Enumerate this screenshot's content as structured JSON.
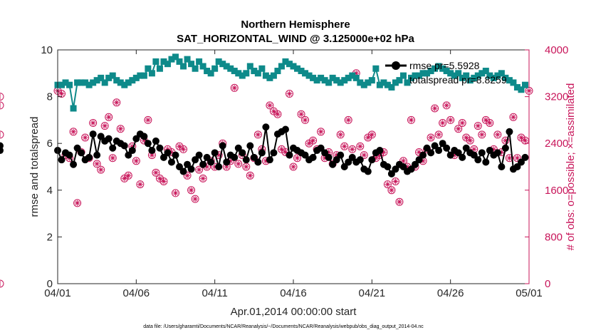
{
  "chart_data": {
    "type": "line",
    "title": "Northern Hemisphere",
    "subtitle": "SAT_HORIZONTAL_WIND @ 3.125000e+02 hPa",
    "xlabel": "Apr.01,2014 00:00:00 start",
    "ylabel": "rmse and totalspread",
    "y2label": "# of obs: o=possible; ×=assimilated",
    "xlim": [
      0,
      30
    ],
    "ylim": [
      0,
      10
    ],
    "y2lim": [
      0,
      4000
    ],
    "x_tick_values": [
      0,
      5,
      10,
      15,
      20,
      25,
      30
    ],
    "x_tick_labels": [
      "04/01",
      "04/06",
      "04/11",
      "04/16",
      "04/21",
      "04/26",
      "05/01"
    ],
    "y_ticks": [
      0,
      2,
      4,
      6,
      8,
      10
    ],
    "y2_ticks": [
      0,
      800,
      1600,
      2400,
      3200,
      4000
    ],
    "grid": false,
    "legend_position": "top-right",
    "colors": {
      "rmse": "#000000",
      "totalspread": "#0e8a8a",
      "obs": "#c8155a"
    },
    "legend": [
      {
        "label": "rmse pr=5.5928",
        "color": "#000000",
        "marker": "circle"
      },
      {
        "label": "totalspread pr=8.8259",
        "color": "#0e8a8a",
        "marker": "square"
      }
    ],
    "rmse_x": [
      0,
      0.25,
      0.5,
      0.75,
      1,
      1.25,
      1.5,
      1.75,
      2,
      2.25,
      2.5,
      2.75,
      3,
      3.25,
      3.5,
      3.75,
      4,
      4.25,
      4.5,
      4.75,
      5,
      5.25,
      5.5,
      5.75,
      6,
      6.25,
      6.5,
      6.75,
      7,
      7.25,
      7.5,
      7.75,
      8,
      8.25,
      8.5,
      8.75,
      9,
      9.25,
      9.5,
      9.75,
      10,
      10.25,
      10.5,
      10.75,
      11,
      11.25,
      11.5,
      11.75,
      12,
      12.25,
      12.5,
      12.75,
      13,
      13.25,
      13.5,
      13.75,
      14,
      14.25,
      14.5,
      14.75,
      15,
      15.25,
      15.5,
      15.75,
      16,
      16.25,
      16.5,
      16.75,
      17,
      17.25,
      17.5,
      17.75,
      18,
      18.25,
      18.5,
      18.75,
      19,
      19.25,
      19.5,
      19.75,
      20,
      20.25,
      20.5,
      20.75,
      21,
      21.25,
      21.5,
      21.75,
      22,
      22.25,
      22.5,
      22.75,
      23,
      23.25,
      23.5,
      23.75,
      24,
      24.25,
      24.5,
      24.75,
      25,
      25.25,
      25.5,
      25.75,
      26,
      26.25,
      26.5,
      26.75,
      27,
      27.25,
      27.5,
      27.75,
      28,
      28.25,
      28.5,
      28.75,
      29,
      29.25,
      29.5,
      29.75
    ],
    "rmse": [
      5.7,
      5.3,
      5.6,
      5.5,
      5.1,
      5.8,
      5.6,
      5.3,
      5.4,
      6.4,
      5.5,
      6.3,
      6.1,
      6.2,
      5.8,
      6.1,
      6.0,
      5.9,
      5.5,
      5.7,
      6.2,
      6.4,
      6.3,
      6.0,
      5.7,
      6.1,
      5.8,
      5.4,
      5.6,
      5.2,
      5.5,
      5.0,
      4.8,
      5.1,
      4.9,
      5.3,
      5.5,
      5.1,
      5.4,
      5.2,
      5.6,
      5.0,
      5.9,
      5.2,
      5.5,
      5.4,
      5.8,
      5.6,
      5.3,
      5.9,
      5.4,
      5.2,
      5.6,
      6.7,
      5.3,
      5.6,
      6.4,
      6.5,
      6.6,
      5.5,
      5.8,
      5.7,
      5.6,
      5.5,
      5.3,
      5.4,
      5.7,
      5.8,
      5.6,
      5.4,
      5.1,
      5.3,
      5.5,
      5.0,
      5.2,
      5.4,
      5.2,
      5.3,
      4.9,
      4.8,
      5.3,
      5.6,
      5.7,
      5.1,
      5.0,
      4.7,
      4.9,
      5.1,
      5.0,
      4.8,
      4.9,
      5.1,
      5.3,
      5.5,
      5.8,
      5.6,
      5.9,
      5.7,
      6.0,
      5.8,
      5.5,
      5.7,
      5.6,
      5.4,
      5.8,
      5.6,
      5.5,
      5.3,
      5.6,
      5.2,
      5.7,
      5.5,
      5.6,
      5.0,
      5.8,
      6.5,
      4.9,
      5.0,
      5.2,
      5.4,
      5.9,
      5.7
    ],
    "totalspread_x": [
      0,
      0.25,
      0.5,
      0.75,
      1,
      1.25,
      1.5,
      1.75,
      2,
      2.25,
      2.5,
      2.75,
      3,
      3.25,
      3.5,
      3.75,
      4,
      4.25,
      4.5,
      4.75,
      5,
      5.25,
      5.5,
      5.75,
      6,
      6.25,
      6.5,
      6.75,
      7,
      7.25,
      7.5,
      7.75,
      8,
      8.25,
      8.5,
      8.75,
      9,
      9.25,
      9.5,
      9.75,
      10,
      10.25,
      10.5,
      10.75,
      11,
      11.25,
      11.5,
      11.75,
      12,
      12.25,
      12.5,
      12.75,
      13,
      13.25,
      13.5,
      13.75,
      14,
      14.25,
      14.5,
      14.75,
      15,
      15.25,
      15.5,
      15.75,
      16,
      16.25,
      16.5,
      16.75,
      17,
      17.25,
      17.5,
      17.75,
      18,
      18.25,
      18.5,
      18.75,
      19,
      19.25,
      19.5,
      19.75,
      20,
      20.25,
      20.5,
      20.75,
      21,
      21.25,
      21.5,
      21.75,
      22,
      22.25,
      22.5,
      22.75,
      23,
      23.25,
      23.5,
      23.75,
      24,
      24.25,
      24.5,
      24.75,
      25,
      25.25,
      25.5,
      25.75,
      26,
      26.25,
      26.5,
      26.75,
      27,
      27.25,
      27.5,
      27.75,
      28,
      28.25,
      28.5,
      28.75,
      29,
      29.25,
      29.5,
      29.75
    ],
    "totalspread": [
      8.5,
      8.5,
      8.6,
      8.5,
      7.5,
      8.6,
      8.6,
      8.6,
      8.5,
      8.6,
      8.7,
      8.8,
      8.6,
      8.8,
      8.9,
      8.7,
      8.6,
      8.5,
      8.6,
      8.7,
      8.8,
      8.9,
      8.9,
      9.2,
      9.0,
      9.5,
      9.2,
      9.5,
      9.4,
      9.6,
      9.7,
      9.5,
      9.3,
      9.6,
      9.4,
      9.2,
      9.5,
      9.3,
      9.1,
      9.0,
      9.2,
      9.5,
      9.4,
      9.3,
      9.2,
      9.1,
      9.0,
      8.9,
      9.0,
      9.3,
      9.1,
      9.0,
      9.2,
      8.9,
      8.8,
      8.9,
      9.1,
      9.3,
      9.5,
      9.4,
      9.3,
      9.2,
      9.1,
      9.0,
      8.9,
      8.8,
      8.7,
      8.8,
      8.7,
      8.6,
      8.8,
      8.7,
      8.6,
      8.7,
      8.8,
      8.9,
      8.8,
      8.6,
      8.5,
      8.6,
      8.7,
      9.2,
      8.5,
      8.6,
      8.5,
      8.4,
      8.6,
      8.7,
      8.9,
      8.6,
      8.8,
      8.9,
      8.9,
      9.0,
      9.0,
      9.1,
      9.2,
      9.3,
      9.2,
      9.1,
      9.0,
      8.9,
      9.0,
      8.8,
      8.9,
      8.7,
      8.8,
      8.9,
      9.0,
      9.1,
      8.9,
      8.8,
      8.9,
      9.0,
      8.8,
      8.7,
      8.6,
      8.4,
      8.3,
      8.5
    ],
    "obs_possible_x": [
      0,
      0.25,
      0.5,
      0.75,
      1,
      1.25,
      1.5,
      1.75,
      2,
      2.25,
      2.5,
      2.75,
      3,
      3.25,
      3.5,
      3.75,
      4,
      4.25,
      4.5,
      4.75,
      5,
      5.25,
      5.5,
      5.75,
      6,
      6.25,
      6.5,
      6.75,
      7,
      7.25,
      7.5,
      7.75,
      8,
      8.25,
      8.5,
      8.75,
      9,
      9.25,
      9.5,
      9.75,
      10,
      10.25,
      10.5,
      10.75,
      11,
      11.25,
      11.5,
      11.75,
      12,
      12.25,
      12.5,
      12.75,
      13,
      13.25,
      13.5,
      13.75,
      14,
      14.25,
      14.5,
      14.75,
      15,
      15.25,
      15.5,
      15.75,
      16,
      16.25,
      16.5,
      16.75,
      17,
      17.25,
      17.5,
      17.75,
      18,
      18.25,
      18.5,
      18.75,
      19,
      19.25,
      19.5,
      19.75,
      20,
      20.25,
      20.5,
      20.75,
      21,
      21.25,
      21.5,
      21.75,
      22,
      22.25,
      22.5,
      22.75,
      23,
      23.25,
      23.5,
      23.75,
      24,
      24.25,
      24.5,
      24.75,
      25,
      25.25,
      25.5,
      25.75,
      26,
      26.25,
      26.5,
      26.75,
      27,
      27.25,
      27.5,
      27.75,
      28,
      28.25,
      28.5,
      28.75,
      29,
      29.25,
      29.5,
      29.75,
      30
    ],
    "obs_possible": [
      3300,
      3250,
      2200,
      2150,
      2600,
      1380,
      2250,
      2500,
      2150,
      2750,
      2050,
      1950,
      2700,
      2850,
      2150,
      3100,
      2650,
      1800,
      1850,
      2350,
      2100,
      1700,
      2450,
      2800,
      2200,
      1900,
      1800,
      1750,
      2300,
      2250,
      1550,
      2350,
      2300,
      1850,
      1600,
      1450,
      1950,
      1800,
      2000,
      2100,
      2000,
      2200,
      2400,
      2000,
      2100,
      3350,
      2050,
      2200,
      2000,
      1850,
      2150,
      2550,
      2300,
      2100,
      3050,
      2950,
      2900,
      2300,
      2250,
      3250,
      2000,
      2150,
      2900,
      2800,
      2400,
      2450,
      2300,
      2600,
      2150,
      2250,
      2050,
      2200,
      2550,
      2350,
      2800,
      2300,
      3600,
      2350,
      2200,
      2500,
      2550,
      2150,
      2200,
      2250,
      1700,
      1600,
      1750,
      1400,
      2100,
      2000,
      2800,
      2000,
      2250,
      2100,
      2300,
      2500,
      3000,
      2550,
      2750,
      3050,
      2800,
      2200,
      2650,
      2750,
      2500,
      2450,
      2300,
      2700,
      2550,
      2800,
      2750,
      2300,
      2550,
      2250,
      2450,
      2150,
      2850,
      2150,
      2500,
      2450,
      3300,
      3200,
      3050,
      2550,
      0
    ]
  },
  "footnote": "data file: /Users/gharamti/Documents/NCAR/Reanalysis/~/Documents/NCAR/Reanalysis/webpub/obs_diag_output_2014-04.nc"
}
